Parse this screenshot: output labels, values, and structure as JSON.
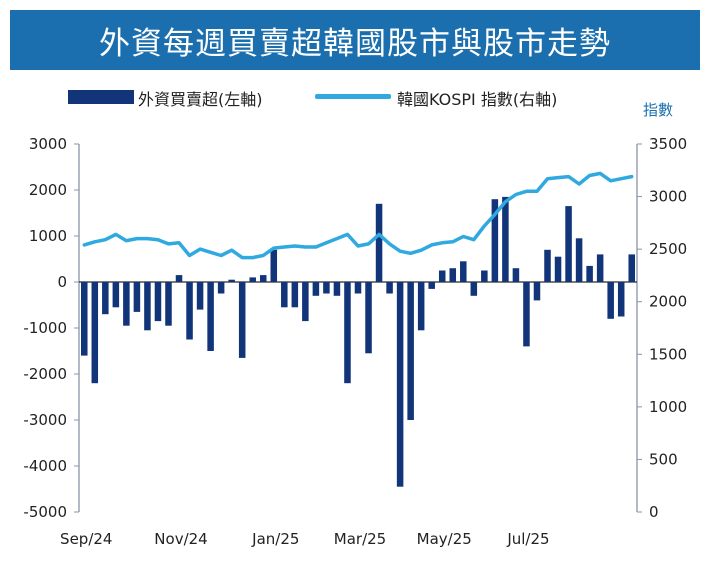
{
  "title": "外資每週買賣超韓國股市與股市走勢",
  "legend": {
    "bar_label": "外資買賣超(左軸)",
    "line_label": "韓國KOSPI 指數(右軸)"
  },
  "right_axis_unit": "指數",
  "colors": {
    "bar": "#12357a",
    "line": "#2fa9df",
    "header": "#1b6fae"
  },
  "chart_data": {
    "type": "bar+line",
    "x_tick_labels": [
      "Sep/24",
      "Nov/24",
      "Jan/25",
      "Mar/25",
      "May/25",
      "Jul/25"
    ],
    "x_tick_week_index": [
      0,
      9,
      18,
      26,
      34,
      42
    ],
    "left_axis": {
      "label": "外資買賣超(左軸)",
      "ylim": [
        -5000,
        3000
      ],
      "ticks": [
        "3000",
        "2000",
        "1000",
        "0",
        "-1000",
        "-2000",
        "-3000",
        "-4000",
        "-5000"
      ]
    },
    "right_axis": {
      "label": "指數",
      "ylim": [
        0,
        3500
      ],
      "ticks": [
        "3500",
        "3000",
        "2500",
        "2000",
        "1500",
        "1000",
        "500",
        "0"
      ]
    },
    "series": [
      {
        "name": "外資買賣超(左軸)",
        "kind": "bar",
        "values": [
          -1600,
          -2200,
          -700,
          -550,
          -950,
          -650,
          -1050,
          -850,
          -950,
          150,
          -1250,
          -600,
          -1500,
          -250,
          50,
          -1650,
          100,
          150,
          700,
          -550,
          -550,
          -850,
          -300,
          -250,
          -300,
          -2200,
          -250,
          -1550,
          1700,
          -250,
          -4450,
          -3000,
          -1050,
          -150,
          250,
          300,
          450,
          -300,
          250,
          1800,
          1850,
          300,
          -1400,
          -400,
          700,
          550,
          1650,
          950,
          350,
          600,
          -800,
          -750,
          600
        ]
      },
      {
        "name": "韓國KOSPI 指數(右軸)",
        "kind": "line",
        "values": [
          2540,
          2570,
          2590,
          2640,
          2580,
          2600,
          2600,
          2590,
          2550,
          2560,
          2440,
          2500,
          2470,
          2440,
          2490,
          2420,
          2420,
          2440,
          2510,
          2520,
          2530,
          2520,
          2520,
          2560,
          2600,
          2640,
          2530,
          2550,
          2640,
          2550,
          2480,
          2460,
          2490,
          2540,
          2560,
          2570,
          2620,
          2590,
          2720,
          2830,
          2950,
          3020,
          3050,
          3050,
          3170,
          3180,
          3190,
          3120,
          3200,
          3220,
          3150,
          3170,
          3190
        ]
      }
    ]
  }
}
